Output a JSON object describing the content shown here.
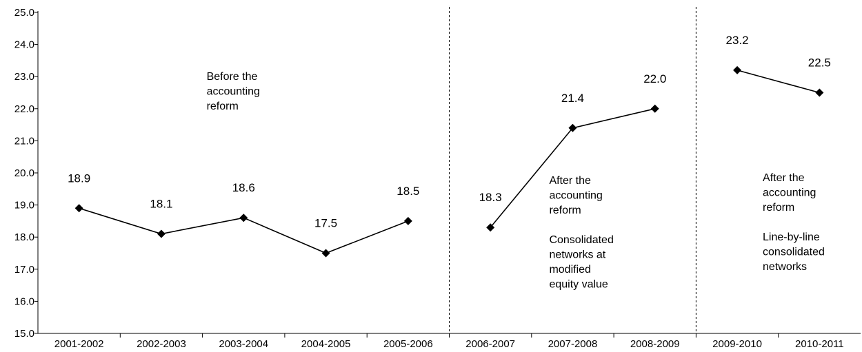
{
  "chart_data": {
    "type": "line",
    "categories": [
      "2001-2002",
      "2002-2003",
      "2003-2004",
      "2004-2005",
      "2005-2006",
      "2006-2007",
      "2007-2008",
      "2008-2009",
      "2009-2010",
      "2010-2011"
    ],
    "segments": [
      {
        "x": [
          "2001-2002",
          "2002-2003",
          "2003-2004",
          "2004-2005",
          "2005-2006"
        ],
        "values": [
          18.9,
          18.1,
          18.6,
          17.5,
          18.5
        ]
      },
      {
        "x": [
          "2006-2007",
          "2007-2008",
          "2008-2009"
        ],
        "values": [
          18.3,
          21.4,
          22.0
        ]
      },
      {
        "x": [
          "2009-2010",
          "2010-2011"
        ],
        "values": [
          23.2,
          22.5
        ]
      }
    ],
    "ylim": [
      15.0,
      25.0
    ],
    "yticks": [
      "15.0",
      "16.0",
      "17.0",
      "18.0",
      "19.0",
      "20.0",
      "21.0",
      "22.0",
      "23.0",
      "24.0",
      "25.0"
    ],
    "data_labels": [
      "18.9",
      "18.1",
      "18.6",
      "17.5",
      "18.5",
      "18.3",
      "21.4",
      "22.0",
      "23.2",
      "22.5"
    ],
    "period_dividers_after": [
      "2005-2006",
      "2008-2009"
    ],
    "annotations": [
      {
        "period": 0,
        "lines": [
          "Before the",
          "accounting",
          "reform"
        ]
      },
      {
        "period": 1,
        "lines": [
          "After the",
          "accounting",
          "reform",
          "",
          "Consolidated",
          "networks at",
          "modified",
          "equity value"
        ]
      },
      {
        "period": 2,
        "lines": [
          "After the",
          "accounting",
          "reform",
          "",
          "Line-by-line",
          "consolidated",
          "networks"
        ]
      }
    ],
    "marker": "diamond",
    "grid": false,
    "line_color": "#000000"
  }
}
